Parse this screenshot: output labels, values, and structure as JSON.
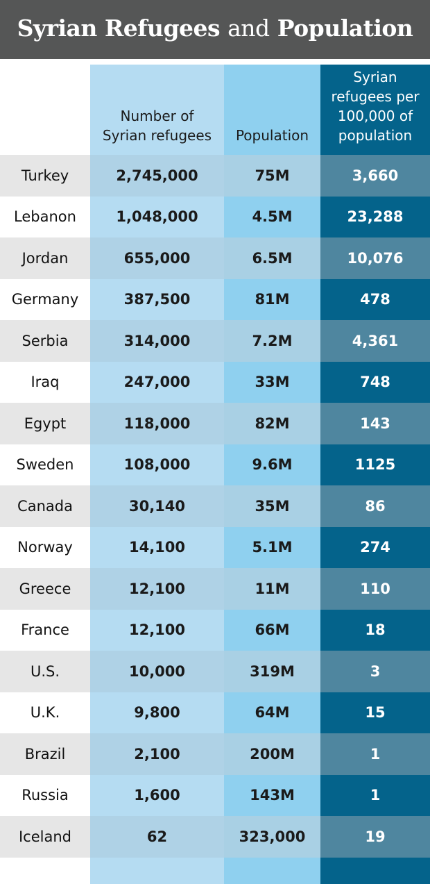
{
  "title": {
    "part1": "Syrian Refugees",
    "part2": "and",
    "part3": "Population"
  },
  "headers": {
    "country": "",
    "refugees_line1": "Number of",
    "refugees_line2": "Syrian refugees",
    "population": "Population",
    "rate_line1": "Syrian",
    "rate_line2": "refugees per",
    "rate_line3": "100,000 of",
    "rate_line4": "population"
  },
  "colors": {
    "title_bg": "#555656",
    "country_even": "#e6e6e6",
    "country_odd": "#ffffff",
    "refugees_even": "#afd2e6",
    "refugees_odd": "#b5dcf2",
    "population_even": "#a9d0e4",
    "population_odd": "#8fd0ef",
    "rate_even": "#4f869f",
    "rate_odd": "#04638b"
  },
  "chart_data": {
    "type": "table",
    "title": "Syrian Refugees and Population",
    "columns": [
      "",
      "Number of Syrian refugees",
      "Population",
      "Syrian refugees per 100,000 of population"
    ],
    "rows": [
      {
        "country": "Turkey",
        "refugees": "2,745,000",
        "population": "75M",
        "per_100k": "3,660"
      },
      {
        "country": "Lebanon",
        "refugees": "1,048,000",
        "population": "4.5M",
        "per_100k": "23,288"
      },
      {
        "country": "Jordan",
        "refugees": "655,000",
        "population": "6.5M",
        "per_100k": "10,076"
      },
      {
        "country": "Germany",
        "refugees": "387,500",
        "population": "81M",
        "per_100k": "478"
      },
      {
        "country": "Serbia",
        "refugees": "314,000",
        "population": "7.2M",
        "per_100k": "4,361"
      },
      {
        "country": "Iraq",
        "refugees": "247,000",
        "population": "33M",
        "per_100k": "748"
      },
      {
        "country": "Egypt",
        "refugees": "118,000",
        "population": "82M",
        "per_100k": "143"
      },
      {
        "country": "Sweden",
        "refugees": "108,000",
        "population": "9.6M",
        "per_100k": "1125"
      },
      {
        "country": "Canada",
        "refugees": "30,140",
        "population": "35M",
        "per_100k": "86"
      },
      {
        "country": "Norway",
        "refugees": "14,100",
        "population": "5.1M",
        "per_100k": "274"
      },
      {
        "country": "Greece",
        "refugees": "12,100",
        "population": "11M",
        "per_100k": "110"
      },
      {
        "country": "France",
        "refugees": "12,100",
        "population": "66M",
        "per_100k": "18"
      },
      {
        "country": "U.S.",
        "refugees": "10,000",
        "population": "319M",
        "per_100k": "3"
      },
      {
        "country": "U.K.",
        "refugees": "9,800",
        "population": "64M",
        "per_100k": "15"
      },
      {
        "country": "Brazil",
        "refugees": "2,100",
        "population": "200M",
        "per_100k": "1"
      },
      {
        "country": "Russia",
        "refugees": "1,600",
        "population": "143M",
        "per_100k": "1"
      },
      {
        "country": "Iceland",
        "refugees": "62",
        "population": "323,000",
        "per_100k": "19"
      }
    ]
  }
}
